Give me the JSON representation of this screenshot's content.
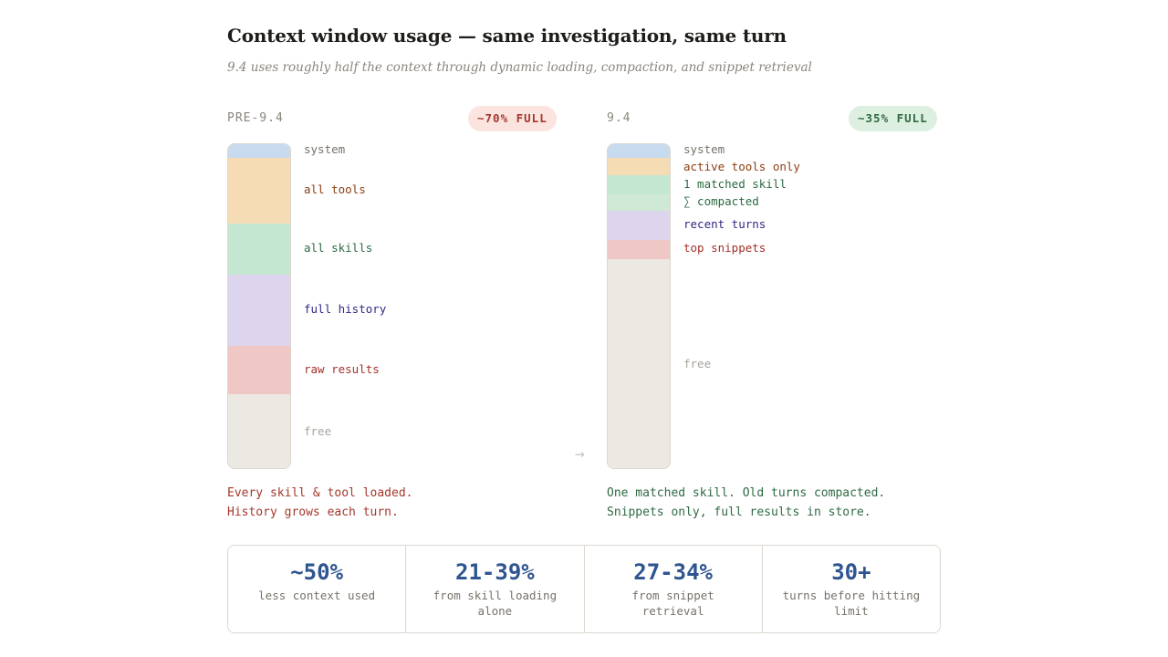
{
  "header": {
    "title": "Context window usage — same investigation, same turn",
    "subtitle": "9.4 uses roughly half the context through dynamic loading, compaction, and snippet retrieval"
  },
  "colors": {
    "system": "#c8dbee",
    "tools": "#f5dcb4",
    "skills": "#c4e7d1",
    "compacted": "#cfe9d6",
    "history": "#ddd5ee",
    "results": "#efc7c5",
    "free": "#ece8e2",
    "label_tools": "#8c3e12",
    "label_skills": "#2d6a44",
    "label_history": "#2f2a85",
    "label_results": "#a4302a",
    "label_system": "#77726a",
    "label_free": "#a8a39b"
  },
  "panels": {
    "before": {
      "label": "PRE-9.4",
      "badge": "~70% FULL",
      "segments": [
        {
          "key": "system",
          "label": "system",
          "fraction": 0.042
        },
        {
          "key": "tools",
          "label": "all tools",
          "fraction": 0.202
        },
        {
          "key": "skills",
          "label": "all skills",
          "fraction": 0.157
        },
        {
          "key": "history",
          "label": "full history",
          "fraction": 0.219
        },
        {
          "key": "results",
          "label": "raw results",
          "fraction": 0.148
        },
        {
          "key": "free",
          "label": "free",
          "fraction": 0.232
        }
      ],
      "caption": [
        "Every skill & tool loaded.",
        "History grows each turn."
      ]
    },
    "after": {
      "label": "9.4",
      "badge": "~35% FULL",
      "segments": [
        {
          "key": "system",
          "label": "system",
          "fraction": 0.042
        },
        {
          "key": "tools",
          "label": "active tools only",
          "fraction": 0.053
        },
        {
          "key": "skills",
          "label": "1 matched skill",
          "fraction": 0.059
        },
        {
          "key": "compacted",
          "label": "∑ compacted",
          "fraction": 0.05
        },
        {
          "key": "history",
          "label": "recent turns",
          "fraction": 0.09
        },
        {
          "key": "results",
          "label": "top snippets",
          "fraction": 0.059
        },
        {
          "key": "free",
          "label": "free",
          "fraction": 0.647
        }
      ],
      "caption": [
        "One matched skill. Old turns compacted.",
        "Snippets only, full results in store."
      ]
    },
    "arrow": "→"
  },
  "stats": [
    {
      "value": "~50%",
      "label": "less context used"
    },
    {
      "value": "21-39%",
      "label": "from skill loading alone"
    },
    {
      "value": "27-34%",
      "label": "from snippet retrieval"
    },
    {
      "value": "30+",
      "label": "turns before hitting limit"
    }
  ]
}
